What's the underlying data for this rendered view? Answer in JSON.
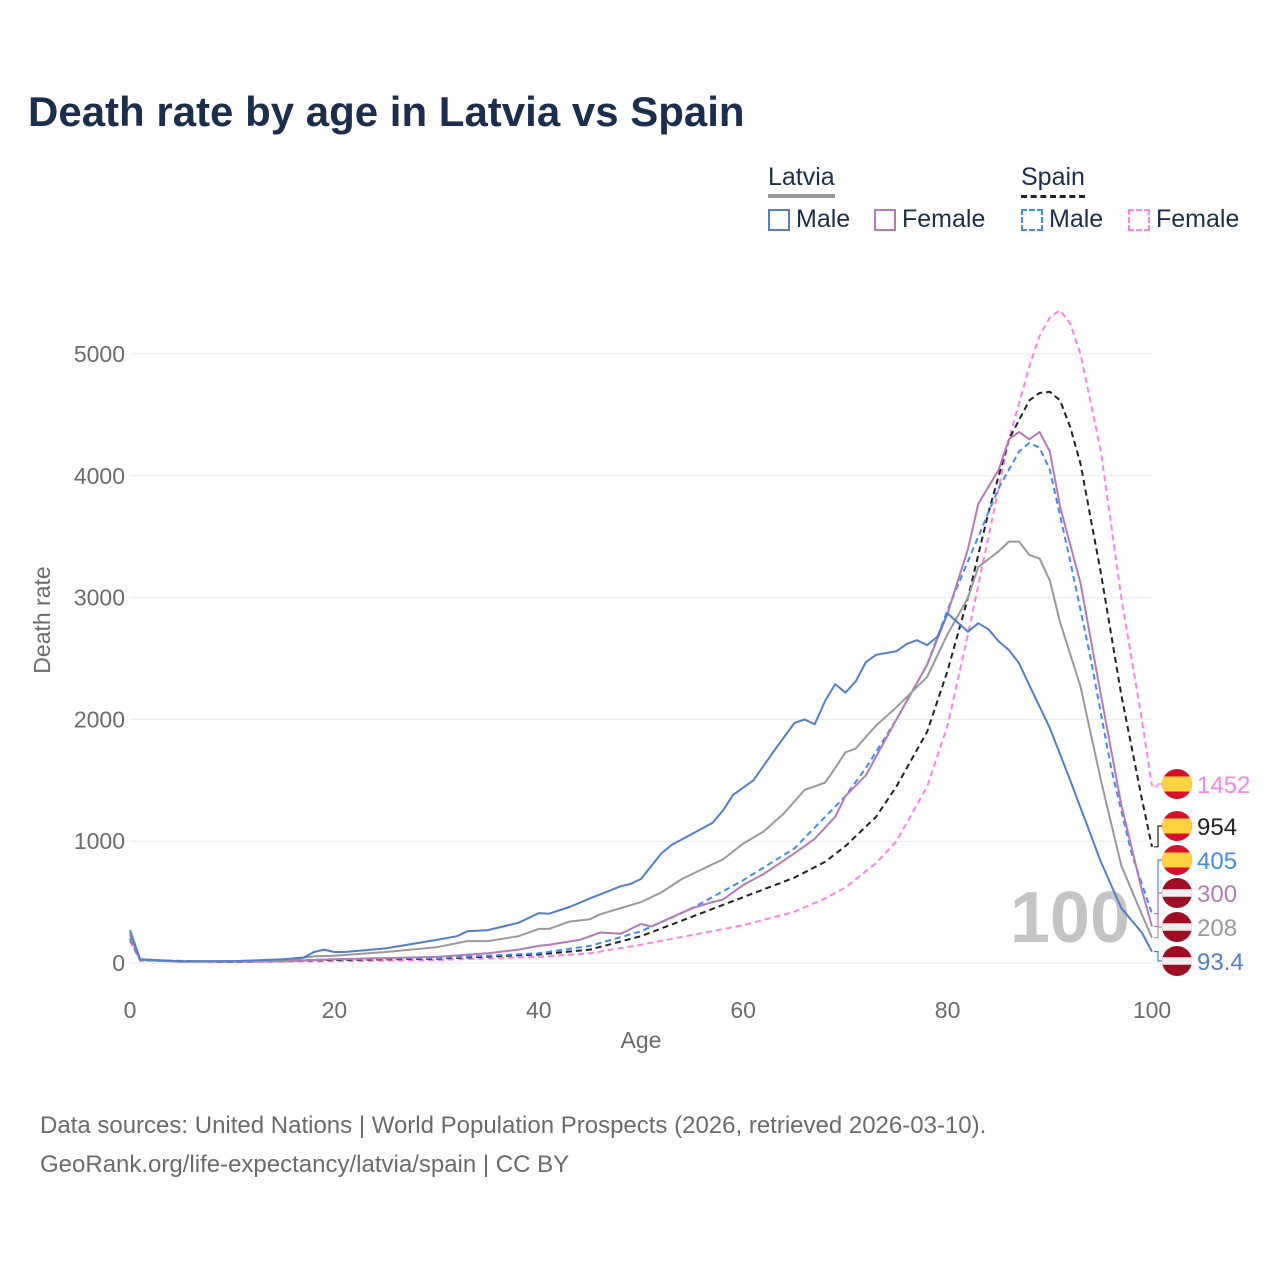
{
  "title": "Death rate by age in Latvia vs Spain",
  "legend": {
    "groups": [
      {
        "name": "Latvia",
        "items": [
          "Male",
          "Female"
        ]
      },
      {
        "name": "Spain",
        "items": [
          "Male",
          "Female"
        ]
      }
    ]
  },
  "watermark": "100",
  "source": {
    "line1": "Data sources: United Nations | World Population Prospects (2026, retrieved 2026-03-10).",
    "line2": "GeoRank.org/life-expectancy/latvia/spain | CC BY"
  },
  "chart_data": {
    "type": "line",
    "title": "Death rate by age in Latvia vs Spain",
    "xlabel": "Age",
    "ylabel": "Death rate",
    "xlim": [
      0,
      100
    ],
    "ylim": [
      0,
      5400
    ],
    "xticks": [
      0,
      20,
      40,
      60,
      80,
      100
    ],
    "yticks": [
      0,
      1000,
      2000,
      3000,
      4000,
      5000
    ],
    "grid": true,
    "legend_position": "top-right",
    "series": [
      {
        "name": "Spain Female",
        "country": "Spain",
        "color": "#ff80e8",
        "dash": true,
        "end_label": "1452",
        "points": [
          [
            0,
            180
          ],
          [
            1,
            20
          ],
          [
            10,
            8
          ],
          [
            20,
            15
          ],
          [
            30,
            25
          ],
          [
            40,
            50
          ],
          [
            45,
            80
          ],
          [
            50,
            150
          ],
          [
            55,
            230
          ],
          [
            60,
            310
          ],
          [
            65,
            420
          ],
          [
            68,
            530
          ],
          [
            70,
            620
          ],
          [
            73,
            820
          ],
          [
            75,
            1000
          ],
          [
            78,
            1450
          ],
          [
            80,
            1950
          ],
          [
            82,
            2700
          ],
          [
            84,
            3500
          ],
          [
            86,
            4300
          ],
          [
            88,
            4900
          ],
          [
            89,
            5150
          ],
          [
            90,
            5300
          ],
          [
            91,
            5360
          ],
          [
            92,
            5250
          ],
          [
            93,
            5000
          ],
          [
            95,
            4200
          ],
          [
            97,
            3000
          ],
          [
            99,
            2000
          ],
          [
            100,
            1452
          ]
        ]
      },
      {
        "name": "Spain Total",
        "country": "Spain",
        "color": "#222222",
        "dash": true,
        "end_label": "954",
        "points": [
          [
            0,
            200
          ],
          [
            1,
            22
          ],
          [
            10,
            8
          ],
          [
            20,
            25
          ],
          [
            30,
            35
          ],
          [
            40,
            70
          ],
          [
            45,
            110
          ],
          [
            50,
            220
          ],
          [
            55,
            380
          ],
          [
            60,
            540
          ],
          [
            65,
            700
          ],
          [
            68,
            830
          ],
          [
            70,
            960
          ],
          [
            73,
            1200
          ],
          [
            75,
            1450
          ],
          [
            78,
            1900
          ],
          [
            80,
            2400
          ],
          [
            82,
            3000
          ],
          [
            84,
            3700
          ],
          [
            86,
            4300
          ],
          [
            88,
            4620
          ],
          [
            89,
            4680
          ],
          [
            90,
            4690
          ],
          [
            91,
            4620
          ],
          [
            92,
            4400
          ],
          [
            93,
            4100
          ],
          [
            95,
            3200
          ],
          [
            97,
            2200
          ],
          [
            99,
            1350
          ],
          [
            100,
            954
          ]
        ]
      },
      {
        "name": "Spain Male",
        "country": "Spain",
        "color": "#3d8bff",
        "dash": true,
        "end_label": "405",
        "points": [
          [
            0,
            200
          ],
          [
            1,
            25
          ],
          [
            10,
            8
          ],
          [
            20,
            30
          ],
          [
            30,
            40
          ],
          [
            40,
            80
          ],
          [
            45,
            140
          ],
          [
            50,
            260
          ],
          [
            55,
            450
          ],
          [
            60,
            680
          ],
          [
            65,
            940
          ],
          [
            70,
            1370
          ],
          [
            72,
            1600
          ],
          [
            75,
            2000
          ],
          [
            78,
            2450
          ],
          [
            80,
            2900
          ],
          [
            83,
            3500
          ],
          [
            85,
            3900
          ],
          [
            87,
            4200
          ],
          [
            88,
            4270
          ],
          [
            89,
            4230
          ],
          [
            90,
            4050
          ],
          [
            92,
            3300
          ],
          [
            94,
            2500
          ],
          [
            96,
            1600
          ],
          [
            98,
            900
          ],
          [
            100,
            405
          ]
        ]
      },
      {
        "name": "Latvia Female",
        "country": "Latvia",
        "color": "#b57ab8",
        "dash": false,
        "end_label": "300",
        "points": [
          [
            0,
            230
          ],
          [
            1,
            25
          ],
          [
            5,
            10
          ],
          [
            15,
            15
          ],
          [
            20,
            30
          ],
          [
            30,
            50
          ],
          [
            35,
            80
          ],
          [
            38,
            110
          ],
          [
            40,
            140
          ],
          [
            41,
            150
          ],
          [
            44,
            190
          ],
          [
            46,
            250
          ],
          [
            48,
            240
          ],
          [
            50,
            320
          ],
          [
            51,
            300
          ],
          [
            55,
            450
          ],
          [
            57,
            500
          ],
          [
            58,
            520
          ],
          [
            60,
            640
          ],
          [
            62,
            730
          ],
          [
            65,
            900
          ],
          [
            67,
            1020
          ],
          [
            69,
            1200
          ],
          [
            70,
            1370
          ],
          [
            72,
            1540
          ],
          [
            75,
            2000
          ],
          [
            78,
            2450
          ],
          [
            80,
            2870
          ],
          [
            82,
            3400
          ],
          [
            83,
            3770
          ],
          [
            85,
            4050
          ],
          [
            86,
            4300
          ],
          [
            87,
            4360
          ],
          [
            88,
            4300
          ],
          [
            89,
            4360
          ],
          [
            90,
            4200
          ],
          [
            91,
            3750
          ],
          [
            93,
            3120
          ],
          [
            95,
            2200
          ],
          [
            97,
            1300
          ],
          [
            99,
            600
          ],
          [
            100,
            300
          ]
        ]
      },
      {
        "name": "Latvia Total",
        "country": "Latvia",
        "color": "#999999",
        "dash": false,
        "end_label": "208",
        "points": [
          [
            0,
            250
          ],
          [
            1,
            28
          ],
          [
            5,
            12
          ],
          [
            15,
            20
          ],
          [
            18,
            55
          ],
          [
            20,
            60
          ],
          [
            25,
            90
          ],
          [
            30,
            130
          ],
          [
            33,
            180
          ],
          [
            35,
            180
          ],
          [
            38,
            220
          ],
          [
            40,
            280
          ],
          [
            41,
            280
          ],
          [
            43,
            340
          ],
          [
            45,
            360
          ],
          [
            46,
            400
          ],
          [
            50,
            500
          ],
          [
            52,
            580
          ],
          [
            54,
            690
          ],
          [
            57,
            810
          ],
          [
            58,
            850
          ],
          [
            60,
            980
          ],
          [
            62,
            1080
          ],
          [
            64,
            1230
          ],
          [
            66,
            1420
          ],
          [
            68,
            1480
          ],
          [
            69,
            1600
          ],
          [
            70,
            1730
          ],
          [
            71,
            1760
          ],
          [
            73,
            1950
          ],
          [
            75,
            2100
          ],
          [
            78,
            2350
          ],
          [
            80,
            2700
          ],
          [
            82,
            3000
          ],
          [
            83,
            3250
          ],
          [
            85,
            3380
          ],
          [
            86,
            3460
          ],
          [
            87,
            3460
          ],
          [
            88,
            3350
          ],
          [
            89,
            3320
          ],
          [
            90,
            3140
          ],
          [
            91,
            2800
          ],
          [
            93,
            2270
          ],
          [
            95,
            1500
          ],
          [
            97,
            800
          ],
          [
            99,
            400
          ],
          [
            100,
            208
          ]
        ]
      },
      {
        "name": "Latvia Male",
        "country": "Latvia",
        "color": "#4f7fce",
        "dash": false,
        "end_label": "93.4",
        "points": [
          [
            0,
            270
          ],
          [
            1,
            30
          ],
          [
            5,
            15
          ],
          [
            10,
            15
          ],
          [
            15,
            30
          ],
          [
            17,
            45
          ],
          [
            18,
            90
          ],
          [
            19,
            110
          ],
          [
            20,
            90
          ],
          [
            21,
            90
          ],
          [
            25,
            120
          ],
          [
            30,
            190
          ],
          [
            32,
            220
          ],
          [
            33,
            260
          ],
          [
            35,
            270
          ],
          [
            38,
            330
          ],
          [
            40,
            410
          ],
          [
            41,
            405
          ],
          [
            43,
            460
          ],
          [
            45,
            530
          ],
          [
            48,
            630
          ],
          [
            49,
            650
          ],
          [
            50,
            690
          ],
          [
            52,
            900
          ],
          [
            53,
            970
          ],
          [
            55,
            1060
          ],
          [
            57,
            1150
          ],
          [
            58,
            1250
          ],
          [
            59,
            1380
          ],
          [
            61,
            1500
          ],
          [
            63,
            1740
          ],
          [
            65,
            1970
          ],
          [
            66,
            2000
          ],
          [
            67,
            1960
          ],
          [
            68,
            2150
          ],
          [
            69,
            2290
          ],
          [
            70,
            2220
          ],
          [
            71,
            2310
          ],
          [
            72,
            2470
          ],
          [
            73,
            2530
          ],
          [
            75,
            2560
          ],
          [
            76,
            2620
          ],
          [
            77,
            2650
          ],
          [
            78,
            2610
          ],
          [
            79,
            2680
          ],
          [
            80,
            2870
          ],
          [
            82,
            2720
          ],
          [
            83,
            2790
          ],
          [
            84,
            2740
          ],
          [
            85,
            2640
          ],
          [
            86,
            2570
          ],
          [
            87,
            2460
          ],
          [
            88,
            2280
          ],
          [
            90,
            1930
          ],
          [
            92,
            1500
          ],
          [
            95,
            830
          ],
          [
            97,
            450
          ],
          [
            99,
            250
          ],
          [
            100,
            93.4
          ]
        ]
      }
    ]
  }
}
